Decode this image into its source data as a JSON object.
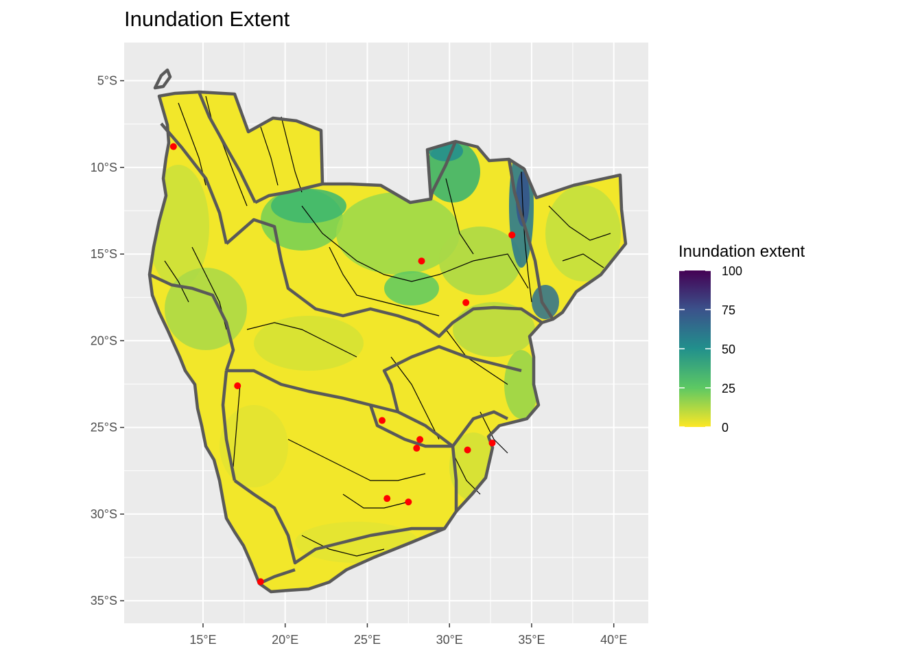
{
  "title": "Inundation Extent",
  "chart_data": {
    "type": "map",
    "title": "Inundation Extent",
    "xlabel": "",
    "ylabel": "",
    "x_ticks": [
      "15°E",
      "20°E",
      "25°E",
      "30°E",
      "35°E",
      "40°E"
    ],
    "x_tick_values": [
      15,
      20,
      25,
      30,
      35,
      40
    ],
    "y_ticks": [
      "5°S",
      "10°S",
      "15°S",
      "20°S",
      "25°S",
      "30°S",
      "35°S"
    ],
    "y_tick_values": [
      -5,
      -10,
      -15,
      -20,
      -25,
      -30,
      -35
    ],
    "xlim": [
      10.2,
      42.1
    ],
    "ylim": [
      -36.3,
      -2.8
    ],
    "grid": true,
    "legend": {
      "title": "Inundation extent",
      "placement": "right",
      "scale": "viridis (reversed)",
      "breaks": [
        100,
        75,
        50,
        25,
        0
      ],
      "range": [
        0,
        100
      ],
      "colors": [
        "#440154",
        "#3b528b",
        "#21908c",
        "#5dc863",
        "#fde725"
      ]
    },
    "colors": {
      "panel_background": "#ebebeb",
      "grid": "#ffffff",
      "basin_outline": "#595959",
      "rivers": "#000000",
      "stations": "#ff0000"
    },
    "stations": [
      {
        "lon": 13.2,
        "lat": -8.8
      },
      {
        "lon": 17.1,
        "lat": -22.6
      },
      {
        "lon": 18.5,
        "lat": -33.9
      },
      {
        "lon": 25.9,
        "lat": -24.6
      },
      {
        "lon": 28.2,
        "lat": -25.7
      },
      {
        "lon": 28.0,
        "lat": -26.2
      },
      {
        "lon": 26.2,
        "lat": -29.1
      },
      {
        "lon": 27.5,
        "lat": -29.3
      },
      {
        "lon": 31.1,
        "lat": -26.3
      },
      {
        "lon": 32.6,
        "lat": -25.9
      },
      {
        "lon": 28.3,
        "lat": -15.4
      },
      {
        "lon": 31.0,
        "lat": -17.8
      },
      {
        "lon": 33.8,
        "lat": -13.9
      }
    ]
  }
}
